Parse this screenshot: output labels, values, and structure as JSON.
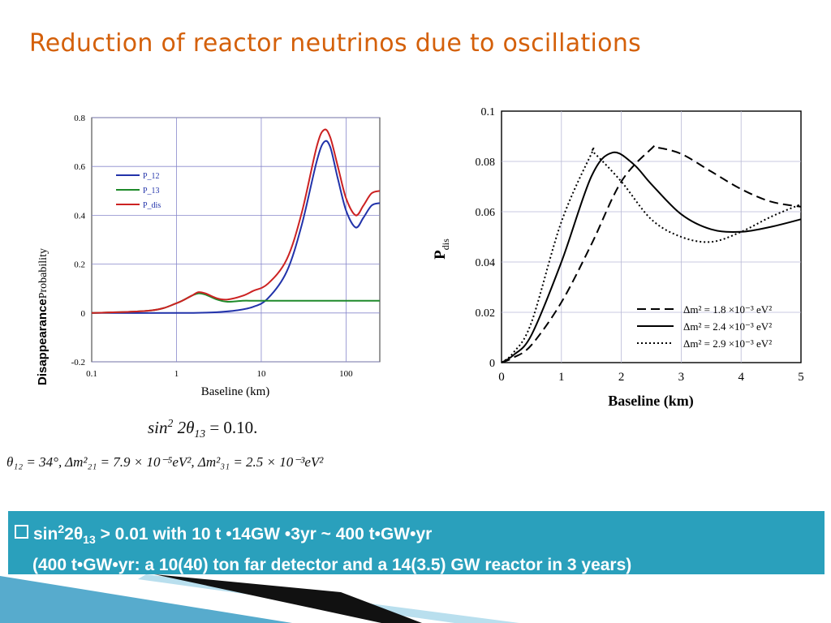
{
  "slide": {
    "title": "Reduction of reactor neutrinos due to oscillations",
    "formula1": {
      "lhs": "sin",
      "exp": "2",
      "arg": " 2θ",
      "sub": "13",
      "rhs": " = 0.10."
    },
    "formula2": "θ₁₂ = 34°,   Δm²₂₁ = 7.9 × 10⁻⁵eV²,   Δm²₃₁ = 2.5 × 10⁻³eV²",
    "bullet_line1": {
      "a": "sin",
      "sup": "2",
      "b": "2θ",
      "sub": "13",
      "c": " > 0.01 with 10 t •14GW •3yr ~ 400 t•GW•yr"
    },
    "bullet_line2": "(400 t•GW•yr:  a 10(40) ton far detector and a 14(3.5) GW reactor in 3 years)",
    "colors": {
      "title": "#d4600a",
      "box": "#2aa0bc"
    }
  },
  "chart_data": [
    {
      "type": "line",
      "x_scale": "log",
      "xlim": [
        0.1,
        250
      ],
      "ylim": [
        -0.2,
        0.8
      ],
      "xlabel": "Baseline (km)",
      "ylabel_bold": "Disappearance",
      "ylabel_rest": "Probability",
      "x_ticks": [
        "0.1",
        "1",
        "10",
        "100"
      ],
      "y_ticks": [
        "0.8",
        "0.6",
        "0.4",
        "0.2",
        "0",
        "-0.2"
      ],
      "grid": true,
      "legend": "upper-left",
      "series": [
        {
          "name": "P_12",
          "color": "#2233aa",
          "x": [
            0.1,
            1,
            2,
            3,
            5,
            8,
            12,
            20,
            30,
            45,
            55,
            65,
            80,
            100,
            130,
            160,
            200,
            250
          ],
          "y": [
            0,
            0,
            0.001,
            0.003,
            0.01,
            0.025,
            0.06,
            0.17,
            0.36,
            0.62,
            0.7,
            0.68,
            0.55,
            0.42,
            0.35,
            0.39,
            0.44,
            0.45
          ]
        },
        {
          "name": "P_13",
          "color": "#1e8a2a",
          "x": [
            0.1,
            0.5,
            1,
            1.5,
            1.8,
            2.2,
            3,
            4,
            6,
            8,
            12,
            30,
            100,
            250
          ],
          "y": [
            0,
            0.01,
            0.04,
            0.07,
            0.08,
            0.075,
            0.055,
            0.046,
            0.05,
            0.05,
            0.05,
            0.05,
            0.05,
            0.05
          ]
        },
        {
          "name": "P_dis",
          "color": "#cc2222",
          "x": [
            0.1,
            0.5,
            1,
            1.5,
            1.8,
            2.2,
            3,
            4,
            6,
            8,
            12,
            20,
            30,
            45,
            55,
            65,
            80,
            100,
            130,
            160,
            200,
            250
          ],
          "y": [
            0,
            0.01,
            0.04,
            0.07,
            0.085,
            0.08,
            0.06,
            0.055,
            0.07,
            0.09,
            0.12,
            0.22,
            0.41,
            0.68,
            0.75,
            0.72,
            0.6,
            0.47,
            0.4,
            0.44,
            0.49,
            0.5
          ]
        }
      ]
    },
    {
      "type": "line",
      "xlim": [
        0,
        5
      ],
      "ylim": [
        0,
        0.1
      ],
      "xlabel": "Baseline (km)",
      "ylabel": "P",
      "ylabel_sub": "dis",
      "x_ticks": [
        "0",
        "1",
        "2",
        "3",
        "4",
        "5"
      ],
      "y_ticks": [
        "0.1",
        "0.08",
        "0.06",
        "0.04",
        "0.02",
        "0"
      ],
      "grid": true,
      "legend": "lower-right",
      "series": [
        {
          "name": "Δm² = 1.8 ×10⁻³ eV²",
          "dash": "11,6",
          "x": [
            0,
            0.2,
            0.5,
            1,
            1.5,
            2,
            2.5,
            2.6,
            3,
            3.5,
            4,
            4.5,
            5
          ],
          "y": [
            0,
            0.002,
            0.007,
            0.024,
            0.047,
            0.072,
            0.085,
            0.0855,
            0.083,
            0.076,
            0.069,
            0.064,
            0.062
          ]
        },
        {
          "name": "Δm² = 2.4 ×10⁻³ eV²",
          "dash": "",
          "x": [
            0,
            0.2,
            0.5,
            1,
            1.5,
            1.85,
            2.2,
            2.5,
            3,
            3.5,
            4,
            4.5,
            5
          ],
          "y": [
            0,
            0.003,
            0.011,
            0.04,
            0.074,
            0.0835,
            0.079,
            0.071,
            0.059,
            0.053,
            0.052,
            0.054,
            0.057
          ]
        },
        {
          "name": "Δm² = 2.9 ×10⁻³ eV²",
          "dash": "2,3",
          "x": [
            0,
            0.2,
            0.5,
            1,
            1.5,
            1.55,
            2,
            2.5,
            3,
            3.5,
            4,
            4.5,
            5
          ],
          "y": [
            0,
            0.004,
            0.016,
            0.056,
            0.083,
            0.0833,
            0.072,
            0.057,
            0.05,
            0.048,
            0.052,
            0.058,
            0.063
          ]
        }
      ]
    }
  ]
}
